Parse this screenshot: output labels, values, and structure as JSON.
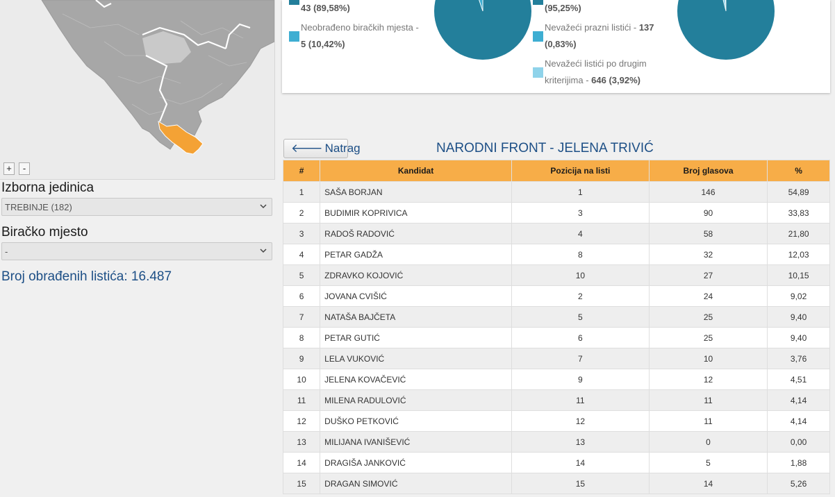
{
  "map": {
    "zoom_in_label": "+",
    "zoom_out_label": "-",
    "highlight_color": "#f4a235"
  },
  "filters": {
    "constituency_label": "Izborna jedinica",
    "constituency_value": "TREBINJE (182)",
    "polling_station_label": "Biračko mjesto",
    "polling_station_value": "-"
  },
  "processed_ballots": "Broj obrađenih listića: 16.487",
  "stats_left": {
    "processed_line2": "43 (89,58%)",
    "unprocessed_line1": "Neobrađeno biračkih mjesta -",
    "unprocessed_line2": "5 (10,42%)"
  },
  "stats_right": {
    "valid_line2": "(95,25%)",
    "invalid_empty_line1": "Nevažeći prazni listići - ",
    "invalid_empty_count": "137",
    "invalid_empty_line2": "(0,83%)",
    "invalid_other_line1": "Nevažeći listići po drugim",
    "invalid_other_line2_prefix": "kriterijima - ",
    "invalid_other_count": "646 (3,92%)"
  },
  "colors": {
    "pie_main": "#237f9b",
    "pie_light": "#3eaed2",
    "pie_lighter": "#8fd3ea",
    "header_orange": "#f7ad48",
    "accent_blue": "#1d4f86"
  },
  "results": {
    "back_label": "Natrag",
    "title": "NARODNI FRONT - JELENA TRIVIĆ",
    "columns": [
      "#",
      "Kandidat",
      "Pozicija na listi",
      "Broj glasova",
      "%"
    ],
    "rows": [
      [
        "1",
        "SAŠA BORJAN",
        "1",
        "146",
        "54,89"
      ],
      [
        "2",
        "BUDIMIR KOPRIVICA",
        "3",
        "90",
        "33,83"
      ],
      [
        "3",
        "RADOŠ RADOVIĆ",
        "4",
        "58",
        "21,80"
      ],
      [
        "4",
        "PETAR GADŽA",
        "8",
        "32",
        "12,03"
      ],
      [
        "5",
        "ZDRAVKO KOJOVIĆ",
        "10",
        "27",
        "10,15"
      ],
      [
        "6",
        "JOVANA CVIŠIĆ",
        "2",
        "24",
        "9,02"
      ],
      [
        "7",
        "NATAŠA BAJČETA",
        "5",
        "25",
        "9,40"
      ],
      [
        "8",
        "PETAR GUTIĆ",
        "6",
        "25",
        "9,40"
      ],
      [
        "9",
        "LELA VUKOVIĆ",
        "7",
        "10",
        "3,76"
      ],
      [
        "10",
        "JELENA KOVAČEVIĆ",
        "9",
        "12",
        "4,51"
      ],
      [
        "11",
        "MILENA RADULOVIĆ",
        "11",
        "11",
        "4,14"
      ],
      [
        "12",
        "DUŠKO PETKOVIĆ",
        "12",
        "11",
        "4,14"
      ],
      [
        "13",
        "MILIJANA IVANIŠEVIĆ",
        "13",
        "0",
        "0,00"
      ],
      [
        "14",
        "DRAGIŠA JANKOVIĆ",
        "14",
        "5",
        "1,88"
      ],
      [
        "15",
        "DRAGAN SIMOVIĆ",
        "15",
        "14",
        "5,26"
      ]
    ]
  }
}
